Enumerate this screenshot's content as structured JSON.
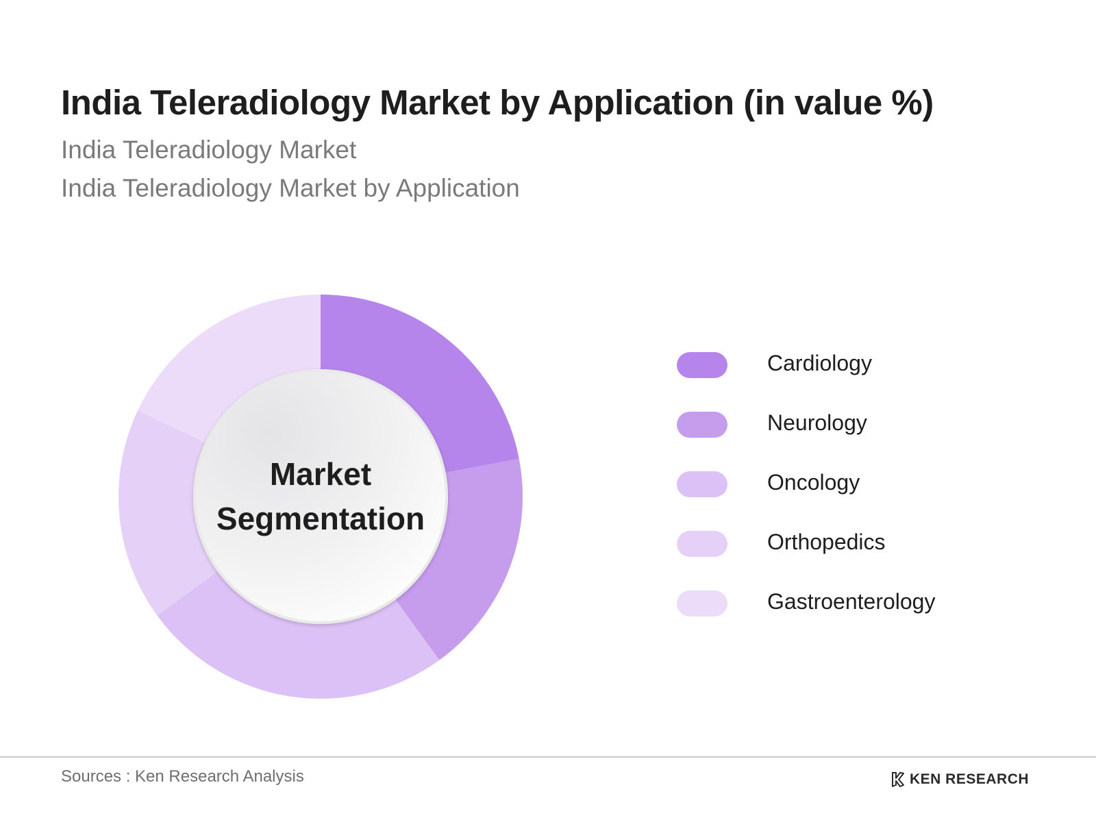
{
  "header": {
    "title": "India Teleradiology Market by Application (in value %)",
    "subtitle_1": "India Teleradiology Market",
    "subtitle_2": "India Teleradiology Market by Application"
  },
  "center_label": {
    "line1": "Market",
    "line2": "Segmentation"
  },
  "chart_data": {
    "type": "pie",
    "variant": "donut",
    "categories": [
      "Cardiology",
      "Neurology",
      "Oncology",
      "Orthopedics",
      "Gastroenterology"
    ],
    "values": [
      22,
      18,
      25,
      17,
      18
    ],
    "colors": [
      "#b585eb",
      "#c69ced",
      "#dcc1f6",
      "#e5d0f7",
      "#ecdcf9"
    ],
    "legend_position": "right",
    "start": "top",
    "direction": "clockwise"
  },
  "footer": {
    "source": "Sources : Ken Research Analysis",
    "logo_text": "KEN RESEARCH"
  }
}
